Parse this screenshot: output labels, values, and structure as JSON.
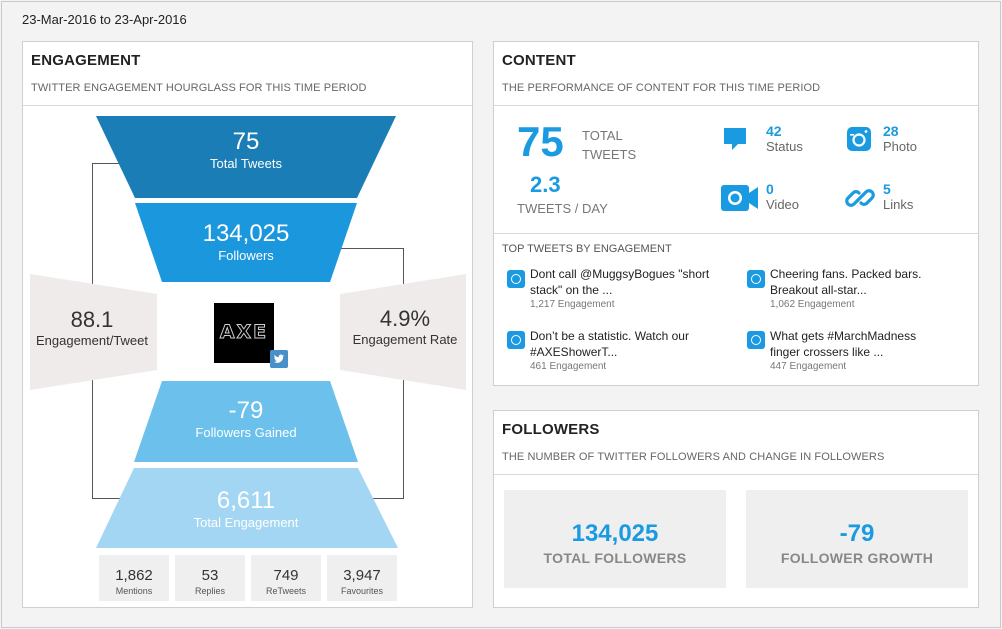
{
  "date_range": "23-Mar-2016 to 23-Apr-2016",
  "engagement": {
    "title": "ENGAGEMENT",
    "subtitle": "TWITTER ENGAGEMENT HOURGLASS FOR THIS TIME PERIOD",
    "total_tweets": {
      "value": "75",
      "label": "Total Tweets"
    },
    "followers": {
      "value": "134,025",
      "label": "Followers"
    },
    "engagement_per_tweet": {
      "value": "88.1",
      "label": "Engagement/Tweet"
    },
    "engagement_rate": {
      "value": "4.9%",
      "label": "Engagement Rate"
    },
    "followers_gained": {
      "value": "-79",
      "label": "Followers Gained"
    },
    "total_engagement": {
      "value": "6,611",
      "label": "Total Engagement"
    },
    "logo_text": "AXE",
    "metrics": [
      {
        "value": "1,862",
        "label": "Mentions"
      },
      {
        "value": "53",
        "label": "Replies"
      },
      {
        "value": "749",
        "label": "ReTweets"
      },
      {
        "value": "3,947",
        "label": "Favourites"
      }
    ],
    "colors": {
      "dark": "#1a7db5",
      "mid": "#1b97dd",
      "light": "#6cc0ec",
      "lighter": "#a3d6f3",
      "side": "#efebea"
    }
  },
  "content": {
    "title": "CONTENT",
    "subtitle": "THE PERFORMANCE OF CONTENT FOR THIS TIME PERIOD",
    "total_tweets_value": "75",
    "total_tweets_label_1": "TOTAL",
    "total_tweets_label_2": "TWEETS",
    "tweets_per_day_value": "2.3",
    "tweets_per_day_label": "TWEETS / DAY",
    "types": [
      {
        "icon": "status-bubble-icon",
        "value": "42",
        "label": "Status"
      },
      {
        "icon": "photo-icon",
        "value": "28",
        "label": "Photo"
      },
      {
        "icon": "video-icon",
        "value": "0",
        "label": "Video"
      },
      {
        "icon": "link-icon",
        "value": "5",
        "label": "Links"
      }
    ],
    "top_tweets_heading": "TOP TWEETS BY ENGAGEMENT",
    "top_tweets": [
      {
        "line1": "Dont call @MuggsyBogues \"short",
        "line2": "stack\" on the ...",
        "engagement": "1,217 Engagement"
      },
      {
        "line1": "Cheering fans. Packed bars.",
        "line2": "Breakout all-star...",
        "engagement": "1,062 Engagement"
      },
      {
        "line1": "Don’t be a statistic. Watch our",
        "line2": "#AXEShowerT...",
        "engagement": "461 Engagement"
      },
      {
        "line1": "What gets #MarchMadness",
        "line2": "finger crossers like ...",
        "engagement": "447 Engagement"
      }
    ]
  },
  "followers": {
    "title": "FOLLOWERS",
    "subtitle": "THE NUMBER OF TWITTER FOLLOWERS AND CHANGE IN FOLLOWERS",
    "total": {
      "value": "134,025",
      "label": "TOTAL FOLLOWERS"
    },
    "growth": {
      "value": "-79",
      "label": "FOLLOWER GROWTH"
    }
  }
}
